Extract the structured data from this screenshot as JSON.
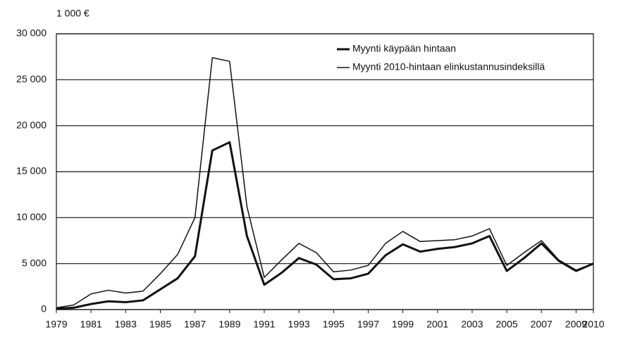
{
  "chart_data": {
    "type": "line",
    "y_unit_label": "1 000 €",
    "x": [
      1979,
      1980,
      1981,
      1982,
      1983,
      1984,
      1985,
      1986,
      1987,
      1988,
      1989,
      1990,
      1991,
      1992,
      1993,
      1994,
      1995,
      1996,
      1997,
      1998,
      1999,
      2000,
      2001,
      2002,
      2003,
      2004,
      2005,
      2006,
      2007,
      2008,
      2009,
      2010
    ],
    "series": [
      {
        "name": "Myynti käypään hintaan",
        "color": "#111111",
        "values": [
          100,
          200,
          600,
          900,
          800,
          1000,
          2200,
          3400,
          5800,
          17300,
          18200,
          8000,
          2700,
          4000,
          5600,
          4900,
          3300,
          3400,
          3900,
          5900,
          7100,
          6300,
          6600,
          6800,
          7200,
          8000,
          4200,
          5600,
          7200,
          5300,
          4200,
          5000
        ]
      },
      {
        "name": "Myynti 2010-hintaan elinkustannusindeksillä",
        "color": "#111111",
        "values": [
          200,
          500,
          1700,
          2100,
          1800,
          2000,
          3900,
          6000,
          10000,
          27400,
          27000,
          11200,
          3500,
          5400,
          7200,
          6200,
          4100,
          4300,
          4800,
          7200,
          8500,
          7400,
          7500,
          7600,
          8000,
          8800,
          4800,
          6200,
          7500,
          5400,
          4300,
          5000
        ]
      }
    ],
    "xlim": [
      1979,
      2010
    ],
    "xticks": [
      1979,
      1981,
      1983,
      1985,
      1987,
      1989,
      1991,
      1993,
      1995,
      1997,
      1999,
      2001,
      2003,
      2005,
      2007,
      2009,
      2010
    ],
    "ylim": [
      0,
      30000
    ],
    "yticks": [
      0,
      {
        "value": 5000,
        "label": "5 000"
      },
      {
        "value": 10000,
        "label": "10 000"
      },
      {
        "value": 15000,
        "label": "15 000"
      },
      {
        "value": 20000,
        "label": "20 000"
      },
      {
        "value": 25000,
        "label": "25 000"
      },
      {
        "value": 30000,
        "label": "30 000"
      }
    ],
    "grid": true,
    "legend_position": "upper right"
  }
}
